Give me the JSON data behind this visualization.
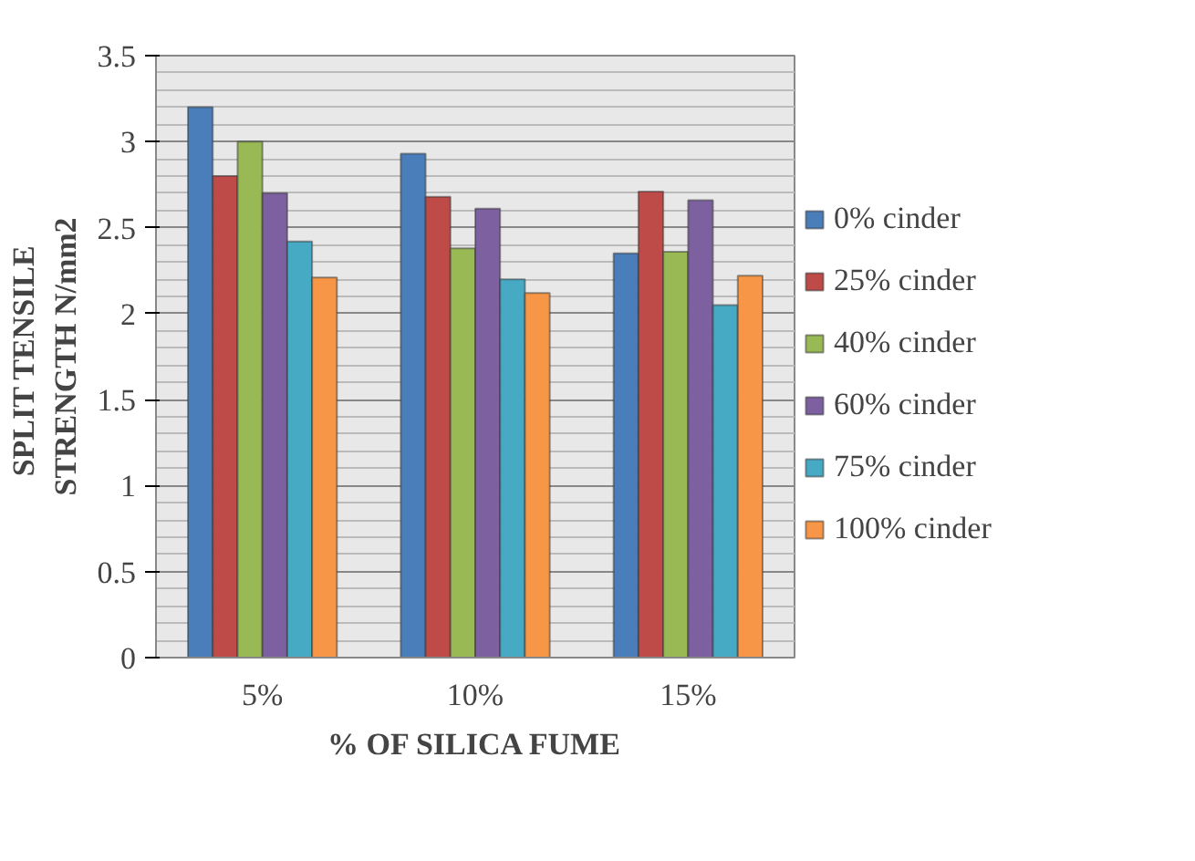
{
  "chart_data": {
    "type": "bar",
    "xlabel": "% OF SILICA FUME",
    "ylabel": "SPLIT  TENSILE\nSTRENGTH N/mm2",
    "categories": [
      "5%",
      "10%",
      "15%"
    ],
    "series": [
      {
        "name": "0% cinder",
        "color": "#4a7ebb",
        "values": [
          3.2,
          2.93,
          2.35
        ]
      },
      {
        "name": "25% cinder",
        "color": "#be4b48",
        "values": [
          2.8,
          2.68,
          2.71
        ]
      },
      {
        "name": "40% cinder",
        "color": "#98b954",
        "values": [
          3.0,
          2.38,
          2.36
        ]
      },
      {
        "name": "60% cinder",
        "color": "#7d60a0",
        "values": [
          2.7,
          2.61,
          2.66
        ]
      },
      {
        "name": "75% cinder",
        "color": "#46aac5",
        "values": [
          2.42,
          2.2,
          2.05
        ]
      },
      {
        "name": "100% cinder",
        "color": "#f79646",
        "values": [
          2.21,
          2.12,
          2.22
        ]
      }
    ],
    "ylim": [
      0,
      3.5
    ],
    "yticks": [
      0,
      0.5,
      1,
      1.5,
      2,
      2.5,
      3,
      3.5
    ],
    "grid": "y",
    "legend": "right"
  }
}
